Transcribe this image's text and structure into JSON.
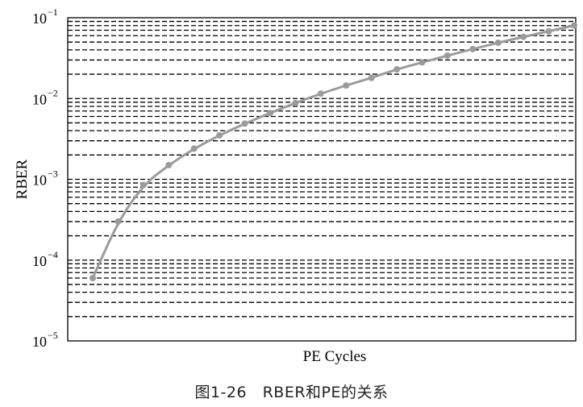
{
  "caption": "图1-26　RBER和PE的关系",
  "chart_data": {
    "type": "line",
    "xlabel": "PE Cycles",
    "ylabel": "RBER",
    "yscale": "log",
    "ylim": [
      1e-05,
      0.1
    ],
    "yticks": [
      {
        "value": 1e-05,
        "base": "10",
        "exp": "−5"
      },
      {
        "value": 0.0001,
        "base": "10",
        "exp": "−4"
      },
      {
        "value": 0.001,
        "base": "10",
        "exp": "−3"
      },
      {
        "value": 0.01,
        "base": "10",
        "exp": "−2"
      },
      {
        "value": 0.1,
        "base": "10",
        "exp": "−1"
      }
    ],
    "xticks": [],
    "grid": "y-major-and-minor-dashed",
    "series": [
      {
        "color": "#9b9b9b",
        "x": [
          1,
          2,
          3,
          4,
          5,
          6,
          7,
          8,
          9,
          10,
          11,
          12,
          13,
          14,
          15,
          16,
          17,
          18,
          19,
          20
        ],
        "y": [
          6e-05,
          0.0003,
          0.00085,
          0.0015,
          0.0024,
          0.0035,
          0.0049,
          0.0066,
          0.0088,
          0.0115,
          0.0145,
          0.018,
          0.023,
          0.028,
          0.034,
          0.041,
          0.049,
          0.058,
          0.068,
          0.08
        ]
      }
    ]
  }
}
